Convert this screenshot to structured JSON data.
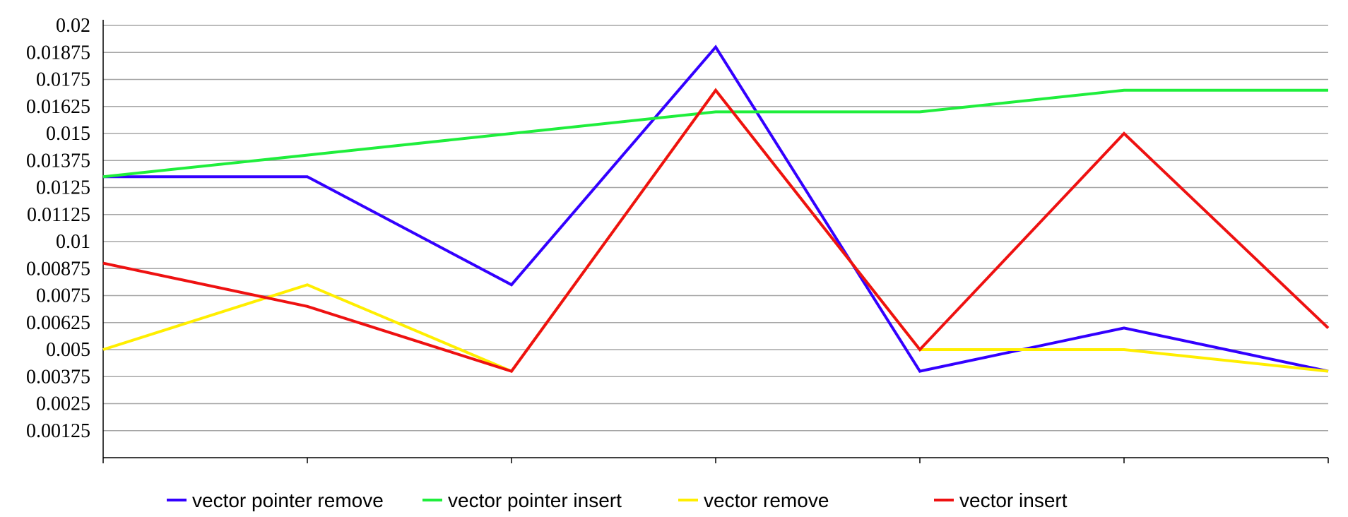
{
  "chart_data": {
    "type": "line",
    "title": "",
    "xlabel": "",
    "ylabel": "",
    "ylim": [
      0,
      0.02
    ],
    "y_ticks": [
      "0.00125",
      "0.0025",
      "0.00375",
      "0.005",
      "0.00625",
      "0.0075",
      "0.00875",
      "0.01",
      "0.01125",
      "0.0125",
      "0.01375",
      "0.015",
      "0.01625",
      "0.0175",
      "0.01875",
      "0.02"
    ],
    "grid": "horizontal",
    "legend_position": "bottom",
    "x_points": 7,
    "series": [
      {
        "name": "vector pointer remove",
        "color": "#3300ff",
        "values": [
          0.013,
          0.013,
          0.008,
          0.019,
          0.004,
          0.006,
          0.004
        ]
      },
      {
        "name": "vector pointer insert",
        "color": "#1fee3c",
        "values": [
          0.013,
          0.014,
          0.015,
          0.016,
          0.016,
          0.017,
          0.017
        ]
      },
      {
        "name": "vector remove",
        "color": "#ffee00",
        "values": [
          0.005,
          0.008,
          0.004,
          0.017,
          0.005,
          0.005,
          0.004
        ]
      },
      {
        "name": "vector insert",
        "color": "#ee1111",
        "values": [
          0.009,
          0.007,
          0.004,
          0.017,
          0.005,
          0.015,
          0.006
        ]
      }
    ]
  }
}
